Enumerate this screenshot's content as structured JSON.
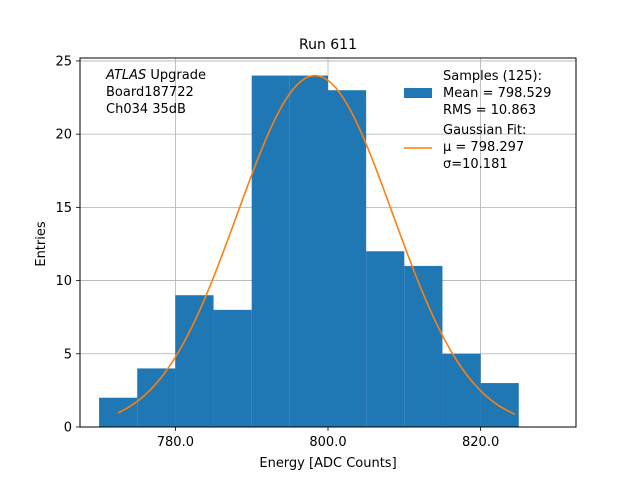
{
  "chart_data": {
    "type": "bar",
    "title": "Run 611",
    "xlabel": "Energy [ADC Counts]",
    "ylabel": "Entries",
    "xlim": [
      767.5,
      832.5
    ],
    "ylim": [
      0,
      25.2
    ],
    "grid": true,
    "x_ticks": [
      780.0,
      800.0,
      820.0
    ],
    "x_tick_labels": [
      "780.0",
      "800.0",
      "820.0"
    ],
    "y_ticks": [
      0,
      5,
      10,
      15,
      20,
      25
    ],
    "y_tick_labels": [
      "0",
      "5",
      "10",
      "15",
      "20",
      "25"
    ],
    "histogram": {
      "bin_edges": [
        770,
        775,
        780,
        785,
        790,
        795,
        800,
        805,
        810,
        815,
        820,
        825
      ],
      "counts": [
        2,
        4,
        9,
        8,
        24,
        24,
        23,
        12,
        11,
        5,
        3
      ],
      "color": "#1f77b4"
    },
    "fit": {
      "type": "gaussian",
      "mu": 798.297,
      "sigma": 10.181,
      "amplitude": 24.0,
      "x_range": [
        772.5,
        824.5
      ],
      "color": "#ff7f0e"
    },
    "annotation": {
      "lines": [
        {
          "italic": "ATLAS",
          "text": " Upgrade"
        },
        {
          "italic": "",
          "text": " Board187722"
        },
        {
          "italic": "",
          "text": " Ch034 35dB"
        }
      ]
    },
    "legend": {
      "placement": "top-right",
      "entries": [
        {
          "kind": "patch",
          "lines": [
            "Samples (125):",
            " Mean = 798.529",
            " RMS = 10.863"
          ]
        },
        {
          "kind": "line",
          "lines": [
            "Gaussian Fit:",
            " μ = 798.297",
            " σ=10.181"
          ]
        }
      ]
    }
  }
}
